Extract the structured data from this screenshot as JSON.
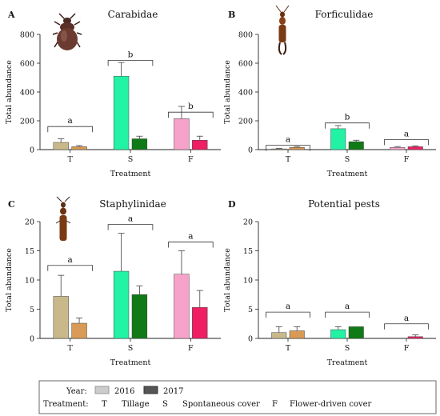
{
  "colors": {
    "T_2016": "#c9b98a",
    "T_2017": "#d99a55",
    "S_2016": "#22f2a4",
    "S_2017": "#0f7a16",
    "F_2016": "#f7a3c9",
    "F_2017": "#ee1f63",
    "legend_2016": "#cccccc",
    "legend_2017": "#555555",
    "treat_T": "#e79a3e",
    "treat_S": "#22c322",
    "treat_F": "#f0258a"
  },
  "legend": {
    "year_label": "Year:",
    "year_2016": "2016",
    "year_2017": "2017",
    "treatment_label": "Treatment:",
    "items": [
      {
        "code": "T",
        "name": "Tillage",
        "color_key": "treat_T"
      },
      {
        "code": "S",
        "name": "Spontaneous cover",
        "color_key": "treat_S"
      },
      {
        "code": "F",
        "name": "Flower-driven cover",
        "color_key": "treat_F"
      }
    ]
  },
  "chart_data": [
    {
      "panel": "A",
      "type": "bar",
      "title": "Carabidae",
      "xlabel": "Treatment",
      "ylabel": "Total abundance",
      "ylim": [
        0,
        800
      ],
      "yticks": [
        "0",
        "200",
        "400",
        "600",
        "800"
      ],
      "categories": [
        "T",
        "S",
        "F"
      ],
      "series": [
        {
          "name": "2016",
          "values": [
            50,
            510,
            215
          ],
          "errors": [
            25,
            95,
            85
          ]
        },
        {
          "name": "2017",
          "values": [
            20,
            75,
            65
          ],
          "errors": [
            8,
            18,
            28
          ]
        }
      ],
      "letters": [
        "a",
        "b",
        "b"
      ],
      "bracket_levels": [
        160,
        620,
        260
      ]
    },
    {
      "panel": "B",
      "type": "bar",
      "title": "Forficulidae",
      "xlabel": "Treatment",
      "ylabel": "Total abundance",
      "ylim": [
        0,
        800
      ],
      "yticks": [
        "0",
        "200",
        "400",
        "600",
        "800"
      ],
      "categories": [
        "T",
        "S",
        "F"
      ],
      "series": [
        {
          "name": "2016",
          "values": [
            5,
            145,
            15
          ],
          "errors": [
            4,
            22,
            6
          ]
        },
        {
          "name": "2017",
          "values": [
            15,
            55,
            20
          ],
          "errors": [
            6,
            10,
            6
          ]
        }
      ],
      "letters": [
        "a",
        "b",
        "a"
      ],
      "bracket_levels": [
        30,
        185,
        70
      ]
    },
    {
      "panel": "C",
      "type": "bar",
      "title": "Staphylinidae",
      "xlabel": "Treatment",
      "ylabel": "Total abundance",
      "ylim": [
        0,
        20
      ],
      "yticks": [
        "0",
        "5",
        "10",
        "15",
        "20"
      ],
      "categories": [
        "T",
        "S",
        "F"
      ],
      "series": [
        {
          "name": "2016",
          "values": [
            7.2,
            11.5,
            11
          ],
          "errors": [
            3.6,
            6.5,
            4
          ]
        },
        {
          "name": "2017",
          "values": [
            2.6,
            7.5,
            5.3
          ],
          "errors": [
            0.9,
            1.5,
            2.9
          ]
        }
      ],
      "letters": [
        "a",
        "a",
        "a"
      ],
      "bracket_levels": [
        12.5,
        19.5,
        16.5
      ]
    },
    {
      "panel": "D",
      "type": "bar",
      "title": "Potential pests",
      "xlabel": "Treatment",
      "ylabel": "Total abundance",
      "ylim": [
        0,
        20
      ],
      "yticks": [
        "0",
        "5",
        "10",
        "15",
        "20"
      ],
      "categories": [
        "T",
        "S",
        "F"
      ],
      "series": [
        {
          "name": "2016",
          "values": [
            1,
            1.5,
            0
          ],
          "errors": [
            1,
            0.5,
            0
          ]
        },
        {
          "name": "2017",
          "values": [
            1.3,
            2,
            0.3
          ],
          "errors": [
            0.7,
            0,
            0.3
          ]
        }
      ],
      "letters": [
        "a",
        "a",
        "a"
      ],
      "bracket_levels": [
        4.5,
        4.5,
        2.5
      ]
    }
  ]
}
